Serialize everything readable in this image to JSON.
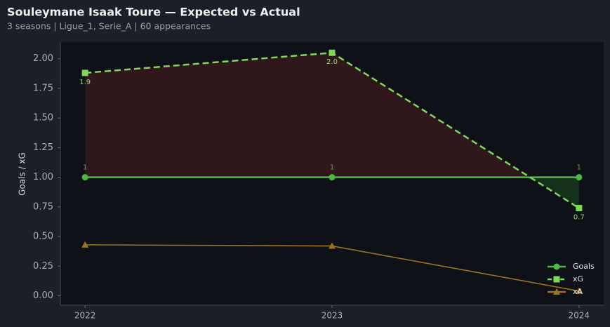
{
  "chart_data": {
    "type": "line",
    "title": "Souleymane Isaak Toure — Expected vs Actual",
    "subtitle": "3 seasons | Ligue_1, Serie_A | 60 appearances",
    "y_label": "Goals / xG",
    "x": [
      2022,
      2023,
      2024
    ],
    "xlim": [
      2021.9,
      2024.1
    ],
    "xticks": [
      2022,
      2023,
      2024
    ],
    "ylim": [
      -0.08,
      2.14
    ],
    "yticks": [
      {
        "value": 0,
        "label": "0.00"
      },
      {
        "value": 0.25,
        "label": "0.25"
      },
      {
        "value": 0.5,
        "label": "0.50"
      },
      {
        "value": 0.75,
        "label": "0.75"
      },
      {
        "value": 1,
        "label": "1.00"
      },
      {
        "value": 1.25,
        "label": "1.25"
      },
      {
        "value": 1.5,
        "label": "1.50"
      },
      {
        "value": 1.75,
        "label": "1.75"
      },
      {
        "value": 2,
        "label": "2.00"
      }
    ],
    "legend": "lower right",
    "series": [
      {
        "name": "Goals",
        "color": "#4cb944",
        "marker": "circle",
        "linestyle": "solid",
        "values": [
          1,
          1,
          1
        ],
        "value_labels": [
          "1",
          "1",
          "1"
        ]
      },
      {
        "name": "xG",
        "color": "#7ed957",
        "marker": "square",
        "linestyle": "dashed",
        "values": [
          1.88,
          2.05,
          0.74
        ],
        "value_labels": [
          "1.9",
          "2.0",
          "0.7"
        ]
      },
      {
        "name": "xA",
        "color": "#9c7420",
        "marker": "triangle",
        "linestyle": "solid",
        "values": [
          0.43,
          0.42,
          0.04
        ]
      }
    ]
  }
}
